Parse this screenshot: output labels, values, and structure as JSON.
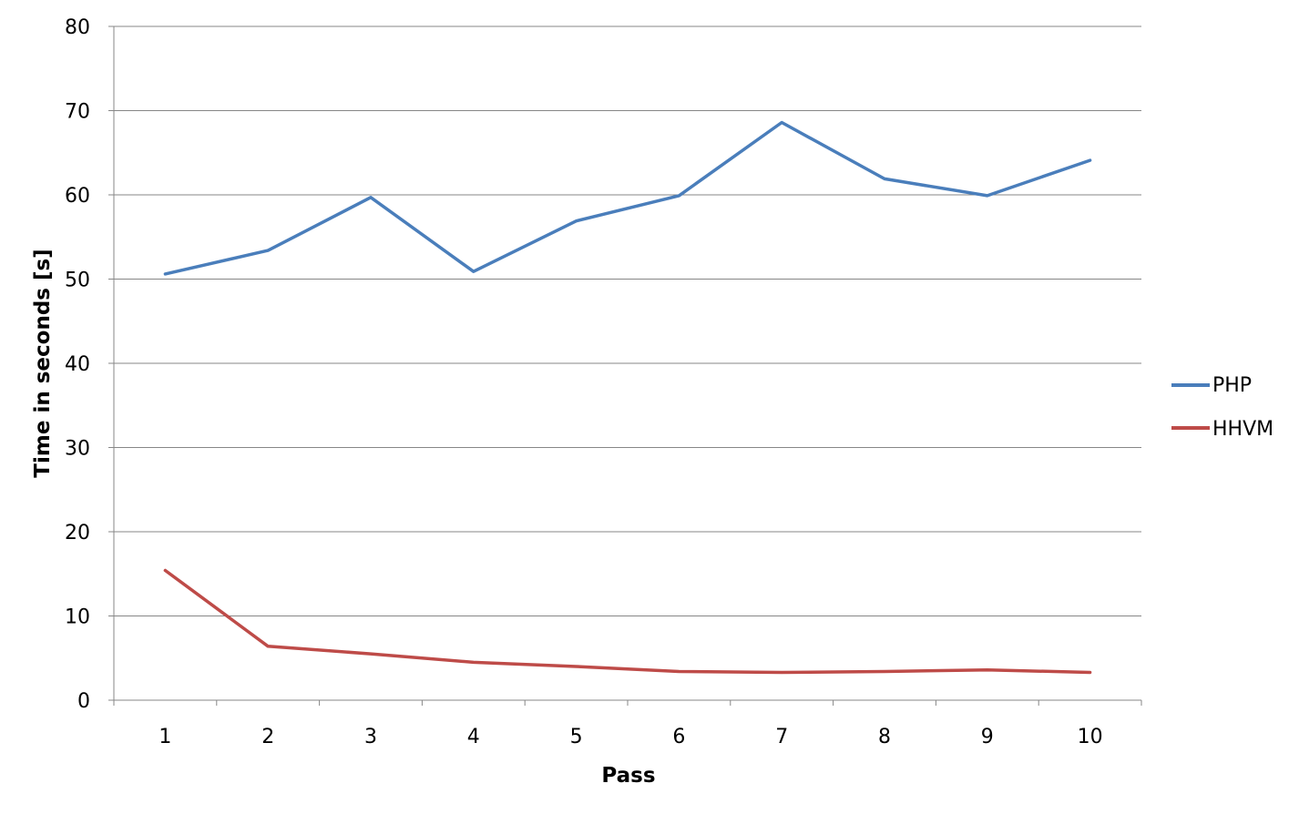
{
  "chart_data": {
    "type": "line",
    "title": "",
    "xlabel": "Pass",
    "ylabel": "Time in seconds [s]",
    "categories": [
      "1",
      "2",
      "3",
      "4",
      "5",
      "6",
      "7",
      "8",
      "9",
      "10"
    ],
    "ylim": [
      0,
      80
    ],
    "yticks": [
      0,
      10,
      20,
      30,
      40,
      50,
      60,
      70,
      80
    ],
    "grid": true,
    "legend_position": "right",
    "series": [
      {
        "name": "PHP",
        "color": "#4a7ebb",
        "values": [
          50.6,
          53.4,
          59.7,
          50.9,
          56.9,
          59.9,
          68.6,
          61.9,
          59.9,
          64.1
        ]
      },
      {
        "name": "HHVM",
        "color": "#be4b48",
        "values": [
          15.4,
          6.4,
          5.5,
          4.5,
          4.0,
          3.4,
          3.3,
          3.4,
          3.6,
          3.3
        ]
      }
    ]
  }
}
